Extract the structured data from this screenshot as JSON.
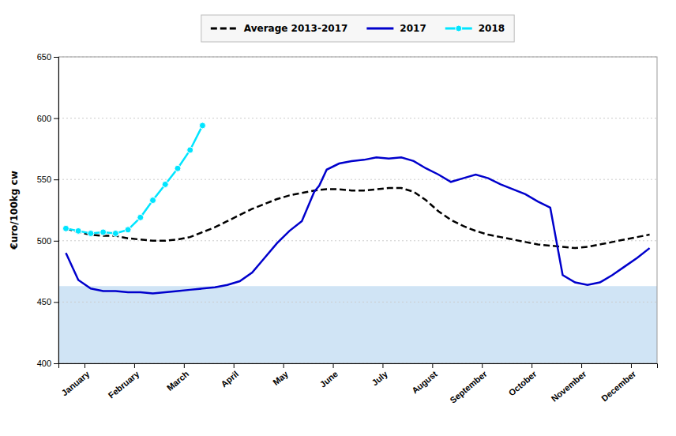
{
  "chart_data": {
    "type": "line",
    "y_label": "€uro/100kg cw",
    "xlim": [
      -0.15,
      11.9
    ],
    "xticks": [
      {
        "value": 0.375,
        "label": "January"
      },
      {
        "value": 1.375,
        "label": "February"
      },
      {
        "value": 2.375,
        "label": "March"
      },
      {
        "value": 3.375,
        "label": "April"
      },
      {
        "value": 4.375,
        "label": "May"
      },
      {
        "value": 5.375,
        "label": "June"
      },
      {
        "value": 6.375,
        "label": "July"
      },
      {
        "value": 7.375,
        "label": "August"
      },
      {
        "value": 8.375,
        "label": "September"
      },
      {
        "value": 9.375,
        "label": "October"
      },
      {
        "value": 10.375,
        "label": "November"
      },
      {
        "value": 11.375,
        "label": "December"
      }
    ],
    "ylim": [
      400,
      650
    ],
    "yticks": [
      400,
      450,
      500,
      550,
      600,
      650
    ],
    "grid": true,
    "legend": "top",
    "bands": [
      {
        "from": 463,
        "to": 650,
        "color": "#ffffff"
      },
      {
        "from": 400,
        "to": 463,
        "color": "#d0e4f5"
      }
    ],
    "series": [
      {
        "name": "Average 2013-2017",
        "color": "#000000",
        "line_style": "dashed",
        "x": [
          0.0,
          0.25,
          0.5,
          0.75,
          1.0,
          1.25,
          1.5,
          1.75,
          2.0,
          2.25,
          2.5,
          2.75,
          3.0,
          3.25,
          3.5,
          3.75,
          4.0,
          4.25,
          4.5,
          4.75,
          5.0,
          5.25,
          5.5,
          5.75,
          6.0,
          6.25,
          6.5,
          6.75,
          7.0,
          7.25,
          7.5,
          7.75,
          8.0,
          8.25,
          8.5,
          8.75,
          9.0,
          9.25,
          9.5,
          9.75,
          10.0,
          10.25,
          10.5,
          10.75,
          11.0,
          11.25,
          11.5,
          11.75
        ],
        "values": [
          510,
          507,
          505,
          504,
          504,
          502,
          501,
          500,
          500,
          501,
          503,
          507,
          511,
          516,
          521,
          526,
          530,
          534,
          537,
          539,
          541,
          542,
          542,
          541,
          541,
          542,
          543,
          543,
          540,
          533,
          524,
          517,
          512,
          508,
          505,
          503,
          501,
          499,
          497,
          496,
          495,
          494,
          495,
          497,
          499,
          501,
          503,
          505
        ]
      },
      {
        "name": "2017",
        "color": "#0000cc",
        "line_style": "solid",
        "x": [
          0.0,
          0.25,
          0.5,
          0.75,
          1.0,
          1.25,
          1.5,
          1.75,
          2.0,
          2.25,
          2.5,
          2.75,
          3.0,
          3.25,
          3.5,
          3.75,
          4.0,
          4.25,
          4.5,
          4.75,
          5.0,
          5.1,
          5.25,
          5.5,
          5.75,
          6.0,
          6.25,
          6.5,
          6.75,
          7.0,
          7.25,
          7.5,
          7.75,
          8.0,
          8.25,
          8.5,
          8.75,
          9.0,
          9.25,
          9.5,
          9.75,
          10.0,
          10.25,
          10.5,
          10.75,
          11.0,
          11.25,
          11.5,
          11.75
        ],
        "values": [
          490,
          468,
          461,
          459,
          459,
          458,
          458,
          457,
          458,
          459,
          460,
          461,
          462,
          464,
          467,
          474,
          486,
          498,
          508,
          516,
          540,
          545,
          558,
          563,
          565,
          566,
          568,
          567,
          568,
          565,
          559,
          554,
          548,
          551,
          554,
          551,
          546,
          542,
          538,
          532,
          527,
          472,
          466,
          464,
          466,
          472,
          479,
          486,
          494
        ]
      },
      {
        "name": "2018",
        "color": "#00e5ff",
        "line_style": "solid",
        "marker": "circle",
        "x": [
          0.0,
          0.25,
          0.5,
          0.75,
          1.0,
          1.25,
          1.5,
          1.75,
          2.0,
          2.25,
          2.5,
          2.75
        ],
        "values": [
          510,
          508,
          506,
          507,
          506,
          509,
          519,
          533,
          546,
          559,
          574,
          594
        ]
      }
    ]
  }
}
